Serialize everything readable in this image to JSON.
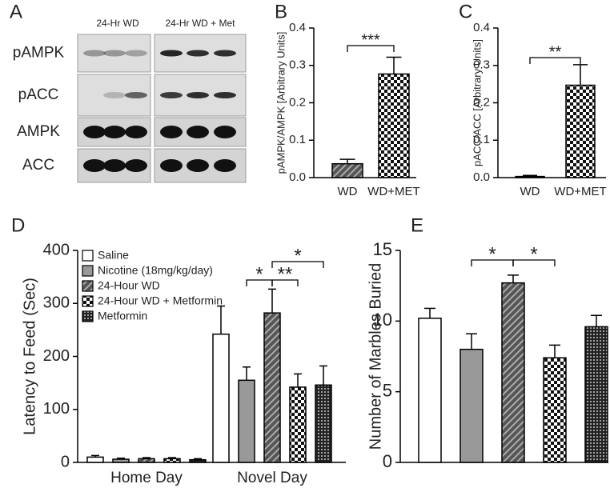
{
  "blot": {
    "panel_label": "A",
    "groups": [
      "24-Hr WD",
      "24-Hr WD + Met"
    ],
    "rows": [
      "pAMPK",
      "pACC",
      "AMPK",
      "ACC"
    ]
  },
  "chart_data": [
    {
      "type": "bar",
      "panel_label": "B",
      "y_label": "pAMPK/AMPK [Arbitrary Units]",
      "categories": [
        "WD",
        "WD+MET"
      ],
      "values": [
        0.037,
        0.277
      ],
      "errors": [
        0.012,
        0.045
      ],
      "fills": [
        "hatch",
        "checker"
      ],
      "ylim": [
        0,
        0.4
      ],
      "yticks": [
        {
          "value": 0,
          "label": "0.0"
        },
        0.1,
        0.2,
        0.3,
        0.4
      ],
      "annotations": [
        "***"
      ]
    },
    {
      "type": "bar",
      "panel_label": "C",
      "y_label": "pACC/ACC [Arbitrary Units]",
      "categories": [
        "WD",
        "WD+MET"
      ],
      "values": [
        0.003,
        0.247
      ],
      "errors": [
        0.003,
        0.055
      ],
      "fills": [
        "hatch",
        "checker"
      ],
      "ylim": [
        0,
        0.4
      ],
      "yticks": [
        {
          "value": 0,
          "label": "0.0"
        },
        0.1,
        0.2,
        0.3,
        0.4
      ],
      "annotations": [
        "**"
      ]
    },
    {
      "type": "grouped_bar",
      "panel_label": "D",
      "y_label": "Latency to Feed (Sec)",
      "categories": [
        "Home Day",
        "Novel Day"
      ],
      "series": [
        {
          "name": "Saline",
          "fill": "white",
          "values": [
            10,
            242
          ],
          "errors": [
            3,
            53
          ]
        },
        {
          "name": "Nicotine (18mg/kg/day)",
          "fill": "gray",
          "values": [
            6,
            155
          ],
          "errors": [
            2,
            25
          ]
        },
        {
          "name": "24-Hour WD",
          "fill": "hatch",
          "values": [
            7,
            282
          ],
          "errors": [
            2,
            45
          ]
        },
        {
          "name": "24-Hour WD + Metformin",
          "fill": "checker",
          "values": [
            7,
            142
          ],
          "errors": [
            2,
            25
          ]
        },
        {
          "name": "Metformin",
          "fill": "dots",
          "values": [
            5,
            146
          ],
          "errors": [
            2,
            36
          ]
        }
      ],
      "ylim": [
        0,
        400
      ],
      "yticks": [
        0,
        100,
        200,
        300,
        400
      ],
      "legend": "upper left",
      "annotations": [
        "*",
        "**",
        "*"
      ]
    },
    {
      "type": "bar",
      "panel_label": "E",
      "y_label": "Number of Marbles Buried",
      "values": [
        10.2,
        8.0,
        12.7,
        7.4,
        9.6
      ],
      "errors": [
        0.7,
        1.1,
        0.55,
        0.9,
        0.8
      ],
      "fills": [
        "white",
        "gray",
        "hatch",
        "checker",
        "dots"
      ],
      "ylim": [
        0,
        15
      ],
      "yticks": [
        0,
        5,
        10,
        15
      ],
      "annotations": [
        "*",
        "*"
      ]
    }
  ]
}
